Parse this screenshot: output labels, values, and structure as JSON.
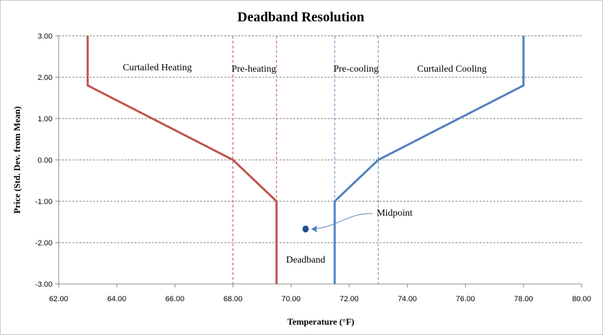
{
  "chart_data": {
    "type": "line",
    "title": "Deadband Resolution",
    "xlabel": "Temperature (°F)",
    "ylabel": "Price (Std. Dev. from Mean)",
    "xlim": [
      62,
      80
    ],
    "ylim": [
      -3,
      3
    ],
    "x_ticks": [
      "62.00",
      "64.00",
      "66.00",
      "68.00",
      "70.00",
      "72.00",
      "74.00",
      "76.00",
      "78.00",
      "80.00"
    ],
    "y_ticks": [
      "-3.00",
      "-2.00",
      "-1.00",
      "0.00",
      "1.00",
      "2.00",
      "3.00"
    ],
    "grid": "horizontal dashed",
    "series": [
      {
        "color": "#c0504d",
        "points": [
          [
            63,
            3
          ],
          [
            63,
            1.8
          ],
          [
            68,
            0
          ],
          [
            69.5,
            -1
          ],
          [
            69.5,
            -3
          ]
        ]
      },
      {
        "color": "#4f81bd",
        "points": [
          [
            71.5,
            -3
          ],
          [
            71.5,
            -1
          ],
          [
            73,
            0
          ],
          [
            78,
            1.8
          ],
          [
            78,
            3
          ]
        ]
      }
    ],
    "marker": {
      "x": 70.5,
      "y": -1.67,
      "color": "#1f4e8c"
    },
    "vlines": [
      {
        "x": 68.0,
        "color": "#c0504d"
      },
      {
        "x": 69.5,
        "color": "#c0504d"
      },
      {
        "x": 71.5,
        "color": "#4f81bd"
      },
      {
        "x": 73.0,
        "color": "#4f81bd"
      }
    ],
    "annotations": {
      "curtailed_heating": "Curtailed Heating",
      "pre_heating": "Pre-heating",
      "pre_cooling": "Pre-cooling",
      "curtailed_cooling": "Curtailed Cooling",
      "midpoint": "Midpoint",
      "deadband": "Deadband"
    }
  }
}
